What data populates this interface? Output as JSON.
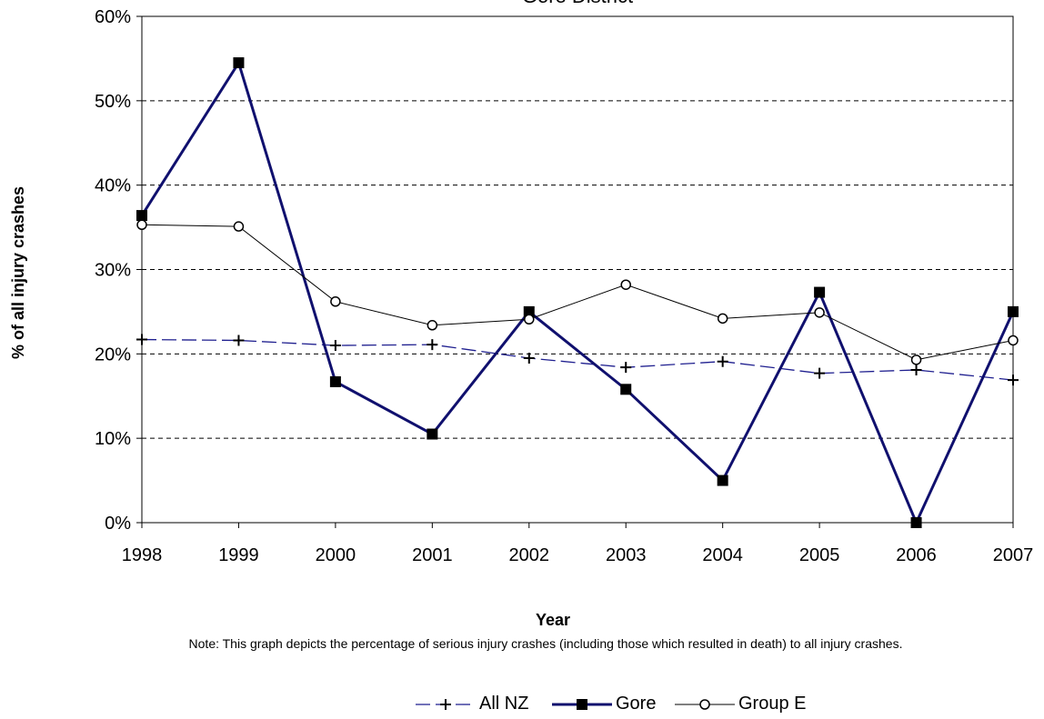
{
  "chart_data": {
    "type": "line",
    "title": "Gore District",
    "xlabel": "Year",
    "ylabel": "% of all injury crashes",
    "categories": [
      "1998",
      "1999",
      "2000",
      "2001",
      "2002",
      "2003",
      "2004",
      "2005",
      "2006",
      "2007"
    ],
    "ylim": [
      0,
      60
    ],
    "yticks": [
      "0%",
      "10%",
      "20%",
      "30%",
      "40%",
      "50%",
      "60%"
    ],
    "grid": "horizontal dashed",
    "legend_position": "bottom",
    "series": [
      {
        "name": "All NZ",
        "color": "#1f1f8f",
        "marker": "plus",
        "line": "dashed",
        "values": [
          21.7,
          21.6,
          21.0,
          21.1,
          19.5,
          18.4,
          19.1,
          17.7,
          18.1,
          16.9
        ]
      },
      {
        "name": "Gore",
        "color": "#10106e",
        "marker": "square",
        "line": "solid-bold",
        "values": [
          36.4,
          54.5,
          16.7,
          10.5,
          25.0,
          15.8,
          5.0,
          27.3,
          0.0,
          25.0
        ]
      },
      {
        "name": "Group E",
        "color": "#000000",
        "marker": "circle",
        "line": "solid-thin",
        "values": [
          35.3,
          35.1,
          26.2,
          23.4,
          24.1,
          28.2,
          24.2,
          24.9,
          19.3,
          21.6
        ]
      }
    ]
  },
  "note": "Note: This graph depicts the percentage of serious injury crashes (including those which resulted in death) to all injury crashes."
}
